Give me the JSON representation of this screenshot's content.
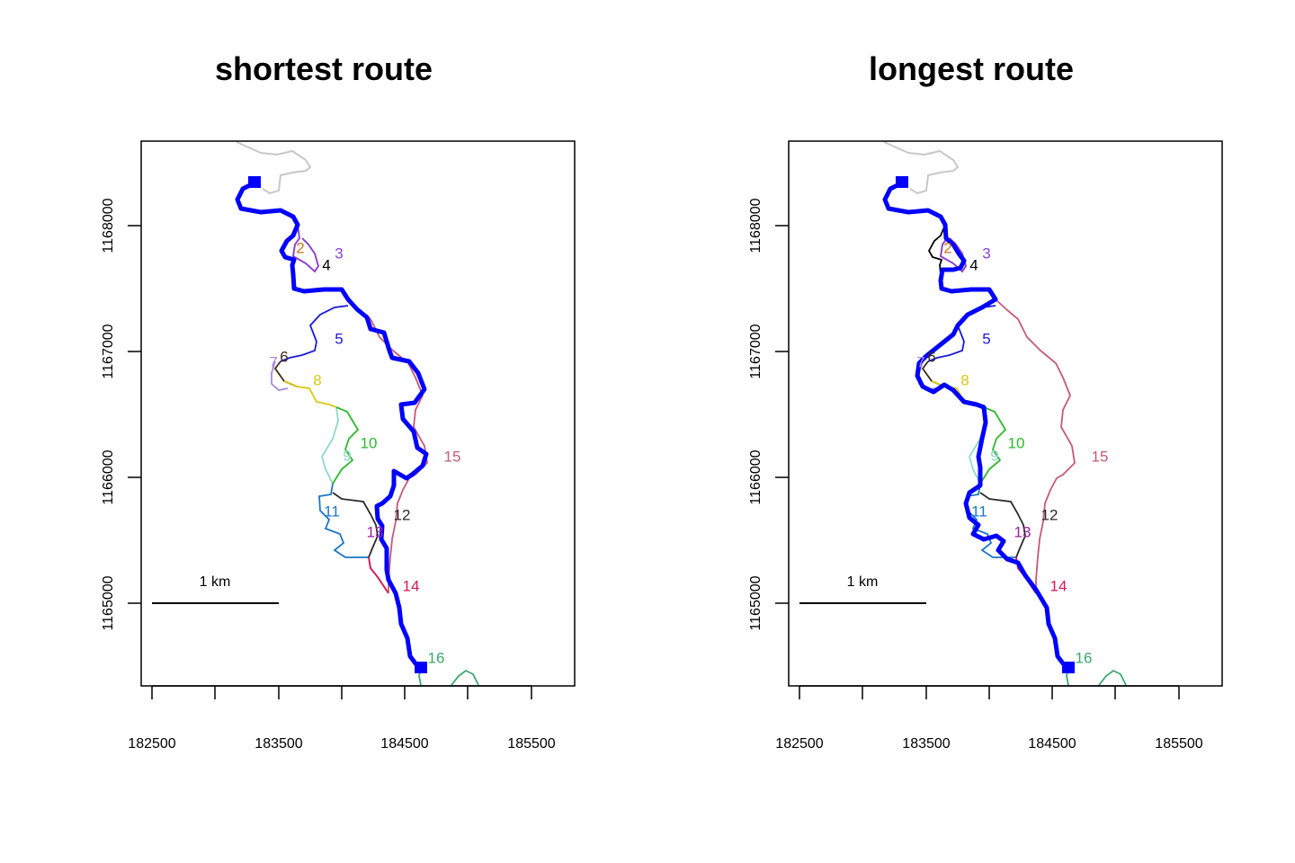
{
  "panels": [
    {
      "title": "shortest route",
      "route_segments": [
        "1",
        "5",
        "8",
        "9",
        "11",
        "13",
        "14",
        "16"
      ],
      "segments": [
        {
          "id": "2",
          "color": "#c9761a"
        },
        {
          "id": "3",
          "color": "#8b3fd9"
        },
        {
          "id": "4",
          "color": "#000000"
        },
        {
          "id": "5",
          "color": "#1a1ad6"
        },
        {
          "id": "6",
          "color": "#3b2b16"
        },
        {
          "id": "7",
          "color": "#a98ad6"
        },
        {
          "id": "8",
          "color": "#d9c813"
        },
        {
          "id": "9",
          "color": "#8fd9c8"
        },
        {
          "id": "10",
          "color": "#2db82d"
        },
        {
          "id": "11",
          "color": "#1a76c8"
        },
        {
          "id": "12",
          "color": "#2b2b2b"
        },
        {
          "id": "13",
          "color": "#a01fa0"
        },
        {
          "id": "14",
          "color": "#d61a54"
        },
        {
          "id": "15",
          "color": "#c45a7a"
        },
        {
          "id": "16",
          "color": "#3ca86e"
        }
      ]
    },
    {
      "title": "longest route",
      "route_segments": [
        "1",
        "2",
        "4",
        "15",
        "5",
        "7",
        "9",
        "11",
        "13",
        "16"
      ],
      "segments": [
        {
          "id": "2",
          "color": "#c9761a"
        },
        {
          "id": "3",
          "color": "#8b3fd9"
        },
        {
          "id": "4",
          "color": "#000000"
        },
        {
          "id": "5",
          "color": "#1a1ad6"
        },
        {
          "id": "6",
          "color": "#3b2b16"
        },
        {
          "id": "7",
          "color": "#a98ad6"
        },
        {
          "id": "8",
          "color": "#d9c813"
        },
        {
          "id": "9",
          "color": "#8fd9c8"
        },
        {
          "id": "10",
          "color": "#2db82d"
        },
        {
          "id": "11",
          "color": "#1a76c8"
        },
        {
          "id": "12",
          "color": "#2b2b2b"
        },
        {
          "id": "13",
          "color": "#a01fa0"
        },
        {
          "id": "14",
          "color": "#d61a54"
        },
        {
          "id": "15",
          "color": "#c45a7a"
        },
        {
          "id": "16",
          "color": "#3ca86e"
        }
      ]
    }
  ],
  "x_ticks": [
    "182500",
    "183500",
    "184500",
    "185500"
  ],
  "y_ticks": [
    "1165000",
    "1166000",
    "1167000",
    "1168000"
  ],
  "scale_bar_label": "1 km",
  "route_color": "#0000ff",
  "background_river_color": "#c8c8c8"
}
